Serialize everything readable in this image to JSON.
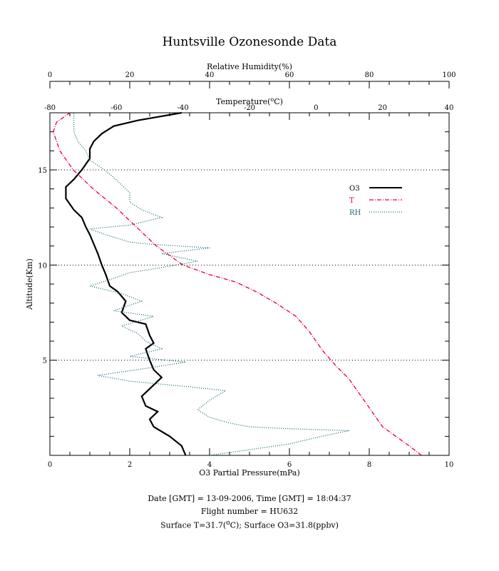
{
  "chart_data": {
    "type": "line",
    "title": "Huntsville Ozonesonde Data",
    "axes": {
      "ozone": {
        "label": "O3 Partial Pressure(mPa)",
        "range": [
          0,
          10
        ],
        "ticks": [
          "0",
          "2",
          "4",
          "6",
          "8",
          "10"
        ]
      },
      "humidity": {
        "label": "Relative Humidity(%)",
        "range": [
          0,
          100
        ],
        "ticks": [
          "0",
          "20",
          "40",
          "60",
          "80",
          "100"
        ]
      },
      "temperature": {
        "label_prefix": "Temperature(",
        "label_sup": "o",
        "label_suffix": "C)",
        "range": [
          -80,
          40
        ],
        "ticks": [
          "-80",
          "-60",
          "-40",
          "-20",
          "0",
          "20",
          "40"
        ]
      },
      "altitude": {
        "label": "Altitude(Km)",
        "range": [
          0,
          18
        ],
        "ticks": [
          "5",
          "10",
          "15"
        ]
      }
    },
    "grid": {
      "horizontal_dotted_at": [
        5,
        10,
        15
      ]
    },
    "legend": {
      "placement": "right",
      "entries": [
        {
          "label": "O3",
          "color": "#000000",
          "style": "solid"
        },
        {
          "label": "T",
          "color": "#e8003a",
          "style": "dash-dot"
        },
        {
          "label": "RH",
          "color": "#1a6b73",
          "style": "dotted"
        }
      ]
    },
    "series": [
      {
        "label": "O3",
        "axis": "ozone",
        "color": "#000000",
        "points": [
          [
            3.4,
            0
          ],
          [
            3.3,
            0.5
          ],
          [
            3.0,
            1.0
          ],
          [
            2.6,
            1.5
          ],
          [
            2.5,
            1.9
          ],
          [
            2.7,
            2.3
          ],
          [
            2.4,
            2.6
          ],
          [
            2.3,
            3.1
          ],
          [
            2.5,
            3.5
          ],
          [
            2.8,
            4.1
          ],
          [
            2.6,
            4.5
          ],
          [
            2.5,
            5.0
          ],
          [
            2.4,
            5.6
          ],
          [
            2.6,
            5.9
          ],
          [
            2.5,
            6.3
          ],
          [
            2.4,
            6.9
          ],
          [
            2.0,
            7.1
          ],
          [
            1.8,
            7.5
          ],
          [
            1.9,
            8.1
          ],
          [
            1.7,
            8.6
          ],
          [
            1.5,
            8.9
          ],
          [
            1.4,
            9.5
          ],
          [
            1.3,
            10.0
          ],
          [
            1.2,
            10.6
          ],
          [
            1.1,
            11.1
          ],
          [
            1.0,
            11.6
          ],
          [
            0.9,
            12.0
          ],
          [
            0.8,
            12.5
          ],
          [
            0.6,
            12.9
          ],
          [
            0.4,
            13.5
          ],
          [
            0.4,
            14.1
          ],
          [
            0.6,
            14.5
          ],
          [
            0.8,
            15.0
          ],
          [
            1.0,
            15.6
          ],
          [
            1.0,
            16.1
          ],
          [
            1.1,
            16.5
          ],
          [
            1.3,
            16.9
          ],
          [
            1.6,
            17.3
          ],
          [
            2.2,
            17.6
          ],
          [
            3.3,
            18.0
          ]
        ]
      },
      {
        "label": "T",
        "axis": "temperature",
        "color": "#e8003a",
        "points": [
          [
            31.7,
            0
          ],
          [
            28.0,
            0.5
          ],
          [
            20.0,
            1.5
          ],
          [
            16.0,
            2.5
          ],
          [
            12.0,
            3.5
          ],
          [
            10.0,
            4.0
          ],
          [
            6.0,
            4.7
          ],
          [
            2.0,
            5.5
          ],
          [
            -2.0,
            6.5
          ],
          [
            -6.0,
            7.3
          ],
          [
            -12.0,
            8.0
          ],
          [
            -18.0,
            8.6
          ],
          [
            -24.0,
            9.1
          ],
          [
            -32.0,
            9.5
          ],
          [
            -40.0,
            10.0
          ],
          [
            -44.0,
            10.5
          ],
          [
            -48.0,
            11.0
          ],
          [
            -54.0,
            12.0
          ],
          [
            -60.0,
            13.0
          ],
          [
            -67.0,
            14.0
          ],
          [
            -73.0,
            15.0
          ],
          [
            -77.0,
            16.0
          ],
          [
            -79.0,
            17.0
          ],
          [
            -78.0,
            17.5
          ],
          [
            -74.0,
            18.0
          ]
        ]
      },
      {
        "label": "RH",
        "axis": "humidity",
        "color": "#1a6b73",
        "points": [
          [
            40,
            0
          ],
          [
            50,
            0.3
          ],
          [
            60,
            0.6
          ],
          [
            68,
            1.0
          ],
          [
            75,
            1.3
          ],
          [
            60,
            1.4
          ],
          [
            50,
            1.5
          ],
          [
            45,
            1.7
          ],
          [
            40,
            2.0
          ],
          [
            37,
            2.4
          ],
          [
            40,
            2.9
          ],
          [
            44,
            3.4
          ],
          [
            35,
            3.6
          ],
          [
            20,
            3.9
          ],
          [
            12,
            4.2
          ],
          [
            25,
            4.6
          ],
          [
            34,
            4.9
          ],
          [
            20,
            5.2
          ],
          [
            28,
            5.6
          ],
          [
            24,
            6.0
          ],
          [
            22,
            6.4
          ],
          [
            18,
            6.8
          ],
          [
            26,
            7.3
          ],
          [
            16,
            7.6
          ],
          [
            23,
            8.1
          ],
          [
            18,
            8.5
          ],
          [
            10,
            8.9
          ],
          [
            16,
            9.3
          ],
          [
            20,
            9.6
          ],
          [
            26,
            9.8
          ],
          [
            37,
            10.2
          ],
          [
            28,
            10.6
          ],
          [
            40,
            10.9
          ],
          [
            25,
            11.1
          ],
          [
            20,
            11.2
          ],
          [
            14,
            11.6
          ],
          [
            10,
            11.9
          ],
          [
            20,
            12.1
          ],
          [
            28,
            12.5
          ],
          [
            23,
            12.9
          ],
          [
            20,
            13.3
          ],
          [
            20,
            13.8
          ],
          [
            18,
            14.2
          ],
          [
            16,
            14.6
          ],
          [
            13,
            15.1
          ],
          [
            10,
            15.5
          ],
          [
            9,
            16.0
          ],
          [
            7,
            16.5
          ],
          [
            6,
            17.0
          ],
          [
            6,
            17.5
          ],
          [
            6,
            18.0
          ]
        ]
      }
    ]
  },
  "footer": {
    "line1": "Date [GMT] = 13-09-2006,  Time [GMT] = 18:04:37",
    "line2": "Flight number = HU632",
    "line3_prefix": "Surface T=31.7(",
    "line3_sup": "o",
    "line3_suffix": "C); Surface O3=31.8(ppbv)"
  }
}
